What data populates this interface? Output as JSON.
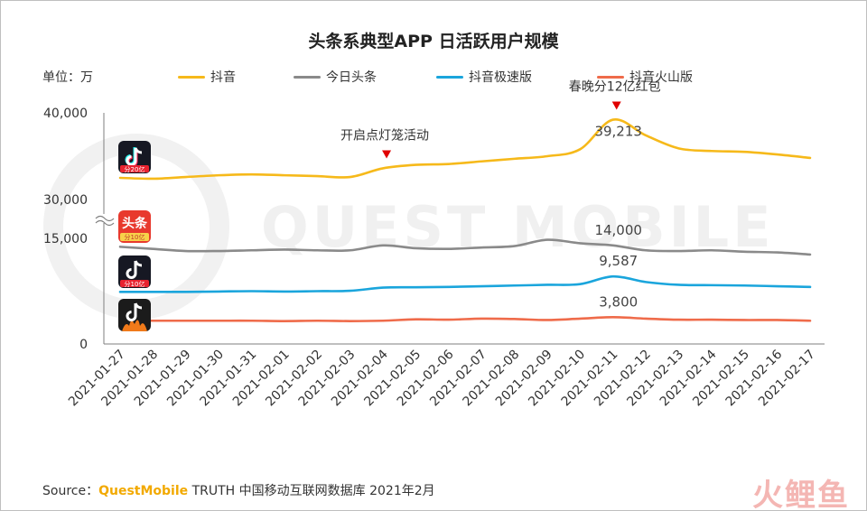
{
  "title": "头条系典型APP 日活跃用户规模",
  "unit_label": "单位：万",
  "legend": [
    {
      "name": "抖音",
      "color": "#f6b91a"
    },
    {
      "name": "今日头条",
      "color": "#8a8a8a"
    },
    {
      "name": "抖音极速版",
      "color": "#1aa5dc"
    },
    {
      "name": "抖音火山版",
      "color": "#ef6b4a"
    }
  ],
  "footer": {
    "prefix": "Source：",
    "brand": "QuestMobile",
    "suffix": " TRUTH 中国移动互联网数据库 2021年2月"
  },
  "watermark": {
    "text": "QUEST MOBILE",
    "logo": "火鲤鱼"
  },
  "icons": [
    {
      "name": "douyin-app-icon",
      "badge": "分20亿"
    },
    {
      "name": "toutiao-app-icon",
      "badge": "头条",
      "sub": "分10亿"
    },
    {
      "name": "douyin-lite-app-icon",
      "badge": "分10亿"
    },
    {
      "name": "douyin-huoshan-app-icon"
    }
  ],
  "chart_data": {
    "type": "line",
    "categories": [
      "2021-01-27",
      "2021-01-28",
      "2021-01-29",
      "2021-01-30",
      "2021-01-31",
      "2021-02-01",
      "2021-02-02",
      "2021-02-03",
      "2021-02-04",
      "2021-02-05",
      "2021-02-06",
      "2021-02-07",
      "2021-02-08",
      "2021-02-09",
      "2021-02-10",
      "2021-02-11",
      "2021-02-12",
      "2021-02-13",
      "2021-02-14",
      "2021-02-15",
      "2021-02-16",
      "2021-02-17"
    ],
    "y_ticks": [
      "40,000",
      "30,000",
      "15,000",
      "0"
    ],
    "axis_break": true,
    "series": [
      {
        "name": "抖音",
        "color": "#f6b91a",
        "values": [
          32500,
          32400,
          32600,
          32800,
          32900,
          32800,
          32700,
          32600,
          33600,
          34000,
          34100,
          34400,
          34700,
          35000,
          35800,
          39213,
          37400,
          35900,
          35600,
          35500,
          35200,
          34800
        ]
      },
      {
        "name": "今日头条",
        "color": "#8a8a8a",
        "values": [
          13800,
          13500,
          13200,
          13200,
          13300,
          13400,
          13300,
          13300,
          14000,
          13600,
          13500,
          13700,
          13900,
          14800,
          14300,
          14000,
          13300,
          13200,
          13300,
          13100,
          13000,
          12700
        ]
      },
      {
        "name": "抖音极速版",
        "color": "#1aa5dc",
        "values": [
          7400,
          7400,
          7400,
          7450,
          7500,
          7450,
          7500,
          7550,
          8000,
          8050,
          8100,
          8200,
          8300,
          8400,
          8500,
          9587,
          8800,
          8400,
          8350,
          8300,
          8200,
          8100
        ]
      },
      {
        "name": "抖音火山版",
        "color": "#ef6b4a",
        "values": [
          3300,
          3300,
          3300,
          3300,
          3300,
          3250,
          3300,
          3250,
          3300,
          3500,
          3450,
          3600,
          3550,
          3400,
          3600,
          3800,
          3600,
          3450,
          3450,
          3400,
          3400,
          3300
        ]
      }
    ],
    "data_labels": [
      {
        "series": 0,
        "index": 15,
        "text": "39,213"
      },
      {
        "series": 1,
        "index": 15,
        "text": "14,000"
      },
      {
        "series": 2,
        "index": 15,
        "text": "9,587"
      },
      {
        "series": 3,
        "index": 15,
        "text": "3,800"
      }
    ],
    "annotations": [
      {
        "index": 8,
        "text": "开启点灯笼活动"
      },
      {
        "index": 15,
        "text": "春晚分12亿红包"
      }
    ]
  }
}
